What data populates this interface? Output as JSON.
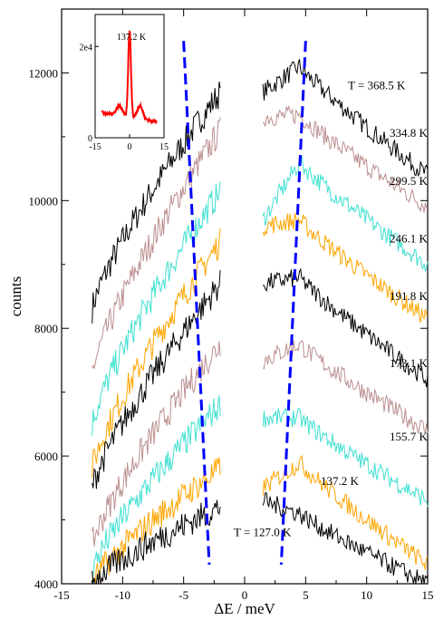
{
  "chart_data": [
    {
      "type": "line",
      "xlabel": "ΔE / meV",
      "ylabel": "counts",
      "xlim": [
        -15,
        15
      ],
      "ylim": [
        4000,
        13000
      ],
      "x_ticks": [
        "-15",
        "-10",
        "-5",
        "0",
        "5",
        "10",
        "15"
      ],
      "y_ticks": [
        "4000",
        "6000",
        "8000",
        "10000",
        "12000"
      ],
      "grid": false,
      "series": [
        {
          "label": "T = 368.5 K",
          "color": "#000000",
          "left_start": 8300,
          "left_end": 11700,
          "right_start": 11700,
          "right_peak": 12100,
          "right_end": 10400
        },
        {
          "label": "334.8 K",
          "color": "#bc8f8f",
          "left_start": 7300,
          "left_end": 11100,
          "right_start": 11300,
          "right_peak": 11350,
          "right_end": 9900
        },
        {
          "label": "299.5 K",
          "color": "#40e0d0",
          "left_start": 6500,
          "left_end": 10150,
          "right_start": 9700,
          "right_peak": 10600,
          "right_end": 9000
        },
        {
          "label": "246.1 K",
          "color": "#ffa500",
          "left_start": 5800,
          "left_end": 9350,
          "right_start": 9600,
          "right_peak": 9700,
          "right_end": 8150
        },
        {
          "label": "191.8 K",
          "color": "#000000",
          "left_start": 5500,
          "left_end": 8700,
          "right_start": 8700,
          "right_peak": 8800,
          "right_end": 7200
        },
        {
          "label": "173.1 K",
          "color": "#bc8f8f",
          "left_start": 4600,
          "left_end": 7750,
          "right_start": 7500,
          "right_peak": 7750,
          "right_end": 6400
        },
        {
          "label": "155.7 K",
          "color": "#40e0d0",
          "left_start": 4200,
          "left_end": 6800,
          "right_start": 6600,
          "right_peak": 6600,
          "right_end": 5300
        },
        {
          "label": "137.2 K",
          "color": "#ffa500",
          "left_start": 4000,
          "left_end": 5800,
          "right_start": 5500,
          "right_peak": 5900,
          "right_end": 4300
        },
        {
          "label": "T = 127.0 K",
          "color": "#000000",
          "left_start": 4000,
          "left_end": 5200,
          "right_start": 5300,
          "right_peak": 5100,
          "right_end": 4000
        }
      ],
      "dashed_lines": [
        {
          "color": "#0000ff",
          "points": [
            [
              -5.0,
              12500
            ],
            [
              -2.9,
              4300
            ]
          ]
        },
        {
          "color": "#0000ff",
          "points": [
            [
              5.0,
              12500
            ],
            [
              3.0,
              4300
            ]
          ]
        }
      ]
    },
    {
      "type": "line",
      "annotation": "137.2 K",
      "xlim": [
        -15,
        15
      ],
      "ylim": [
        0,
        27000
      ],
      "x_ticks": [
        "-15",
        "0",
        "15"
      ],
      "y_ticks": [
        "0",
        "2e4"
      ],
      "series": [
        {
          "color": "#ff0000",
          "shape": "peak",
          "center": 0,
          "peak": 23500,
          "baseline_left": 5500,
          "baseline_right": 3500,
          "shoulders": 7000
        }
      ]
    }
  ]
}
